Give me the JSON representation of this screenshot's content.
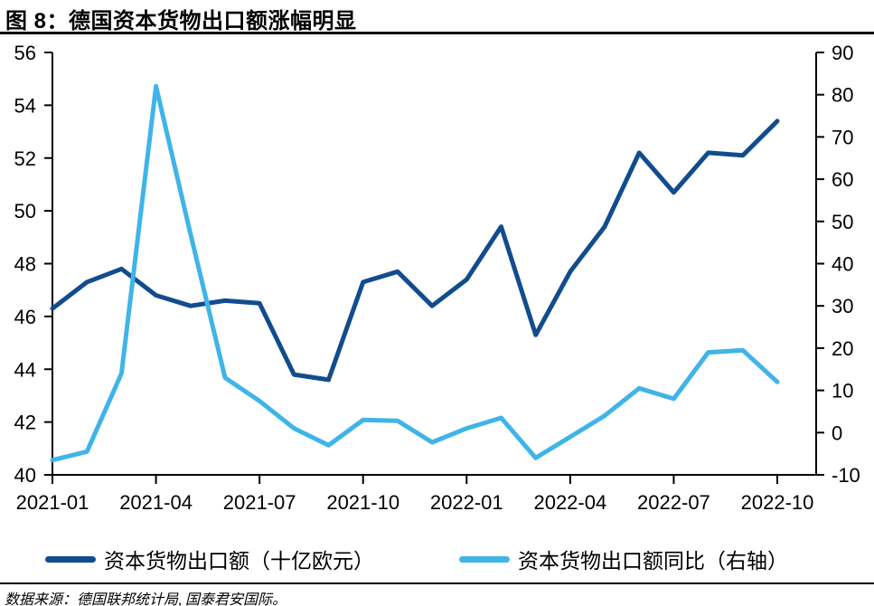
{
  "header": {
    "title": "图 8：德国资本货物出口额涨幅明显"
  },
  "footer": {
    "source": "数据来源：德国联邦统计局, 国泰君安国际。"
  },
  "colors": {
    "axis": "#000000",
    "export_line": "#114C8E",
    "yoy_line": "#3FB4E9"
  },
  "chart_data": {
    "type": "line",
    "title": "图 8：德国资本货物出口额涨幅明显",
    "x": [
      "2021-01",
      "2021-02",
      "2021-03",
      "2021-04",
      "2021-05",
      "2021-06",
      "2021-07",
      "2021-08",
      "2021-09",
      "2021-10",
      "2021-11",
      "2021-12",
      "2022-01",
      "2022-02",
      "2022-03",
      "2022-04",
      "2022-05",
      "2022-06",
      "2022-07",
      "2022-08",
      "2022-09",
      "2022-10"
    ],
    "x_tick_labels": [
      "2021-01",
      "2021-04",
      "2021-07",
      "2021-10",
      "2022-01",
      "2022-04",
      "2022-07",
      "2022-10"
    ],
    "series": [
      {
        "name": "资本货物出口额（十亿欧元）",
        "axis": "left",
        "color": "#114C8E",
        "values": [
          46.3,
          47.3,
          47.8,
          46.8,
          46.4,
          46.6,
          46.5,
          43.8,
          43.6,
          47.3,
          47.7,
          46.4,
          47.4,
          49.4,
          45.3,
          47.7,
          49.4,
          52.2,
          50.7,
          52.2,
          52.1,
          53.4
        ]
      },
      {
        "name": "资本货物出口额同比（右轴）",
        "axis": "right",
        "color": "#3FB4E9",
        "values": [
          -6.5,
          -4.5,
          14,
          82,
          47,
          13,
          7.5,
          1,
          -3,
          3,
          2.8,
          -2.3,
          1,
          3.5,
          -6,
          -1,
          4,
          10.5,
          8,
          19,
          19.5,
          12
        ]
      }
    ],
    "left_axis": {
      "min": 40,
      "max": 56,
      "step": 2
    },
    "right_axis": {
      "min": -10,
      "max": 90,
      "step": 10
    },
    "grid": false,
    "legend_position": "bottom"
  }
}
